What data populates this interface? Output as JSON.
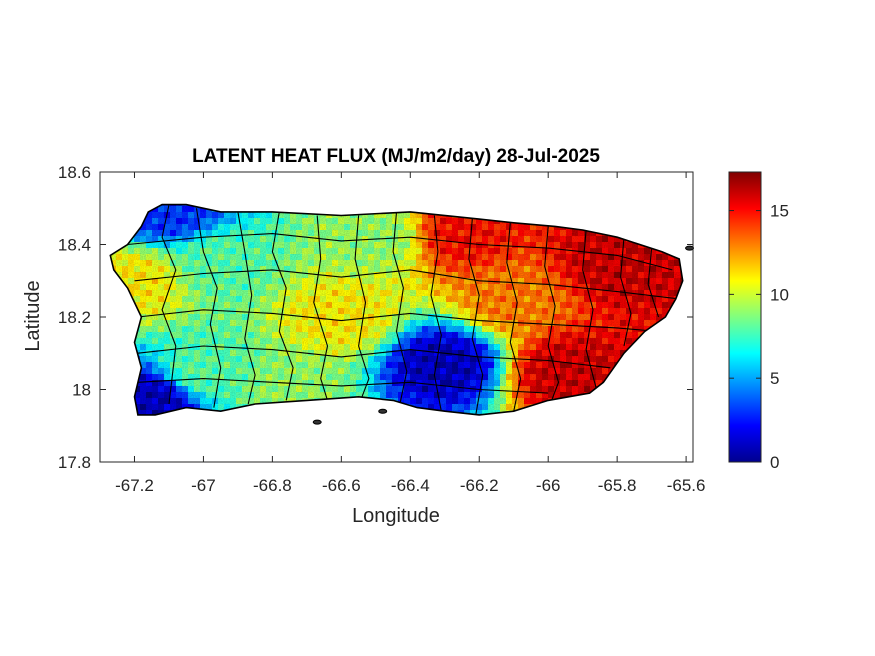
{
  "chart_data": {
    "type": "heatmap",
    "title": "LATENT HEAT FLUX (MJ/m2/day) 28-Jul-2025",
    "xlabel": "Longitude",
    "ylabel": "Latitude",
    "xlim": [
      -67.3,
      -65.58
    ],
    "ylim": [
      17.8,
      18.6
    ],
    "xticks": [
      -67.2,
      -67,
      -66.8,
      -66.6,
      -66.4,
      -66.2,
      -66,
      -65.8,
      -65.6
    ],
    "xtick_labels": [
      "-67.2",
      "-67",
      "-66.8",
      "-66.6",
      "-66.4",
      "-66.2",
      "-66",
      "-65.8",
      "-65.6"
    ],
    "yticks": [
      18.6,
      18.4,
      18.2,
      18,
      17.8
    ],
    "ytick_labels": [
      "18.6",
      "18.4",
      "18.2",
      "18",
      "17.8"
    ],
    "colormap": "jet",
    "colorbar": {
      "min": 0,
      "max": 17.3,
      "ticks": [
        0,
        5,
        10,
        15
      ],
      "tick_labels": [
        "0",
        "5",
        "10",
        "15"
      ]
    },
    "grid": false,
    "field_zones": [
      {
        "region": "northwest coast",
        "lon": -67.1,
        "lat": 18.49,
        "value": 3
      },
      {
        "region": "west interior",
        "lon": -66.95,
        "lat": 18.35,
        "value": 8
      },
      {
        "region": "west coast",
        "lon": -67.2,
        "lat": 18.3,
        "value": 11
      },
      {
        "region": "southwest",
        "lon": -67.0,
        "lat": 18.05,
        "value": 8
      },
      {
        "region": "southwest coast",
        "lon": -67.15,
        "lat": 17.97,
        "value": 1
      },
      {
        "region": "south coast",
        "lon": -66.75,
        "lat": 18.0,
        "value": 9
      },
      {
        "region": "central interior",
        "lon": -66.6,
        "lat": 18.2,
        "value": 11
      },
      {
        "region": "north central",
        "lon": -66.5,
        "lat": 18.42,
        "value": 9
      },
      {
        "region": "central south",
        "lon": -66.3,
        "lat": 18.07,
        "value": 1
      },
      {
        "region": "north coast east",
        "lon": -66.25,
        "lat": 18.43,
        "value": 15
      },
      {
        "region": "east central",
        "lon": -66.1,
        "lat": 18.25,
        "value": 13
      },
      {
        "region": "southeast",
        "lon": -65.95,
        "lat": 18.05,
        "value": 16
      },
      {
        "region": "northeast",
        "lon": -65.8,
        "lat": 18.35,
        "value": 16
      }
    ]
  }
}
